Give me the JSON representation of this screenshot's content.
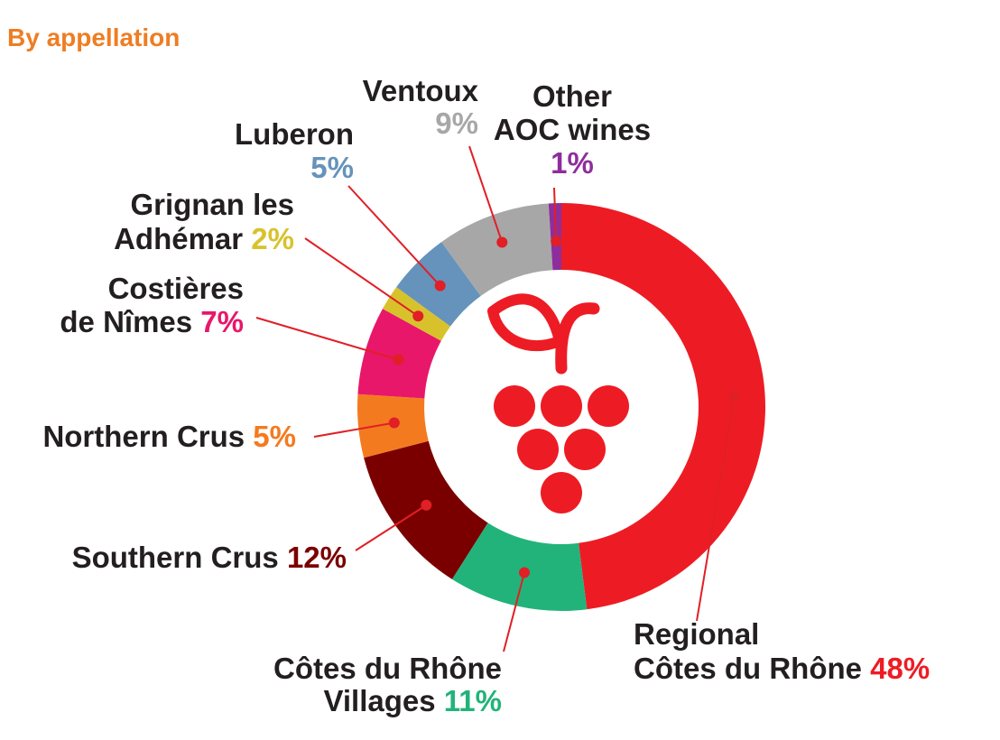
{
  "chart_data": {
    "type": "pie",
    "title": "By appellation",
    "unit": "%",
    "slices": [
      {
        "lines": [
          "Regional",
          "Côtes du Rhône"
        ],
        "value": 48,
        "value_label": "48%",
        "color": "#ed1c24"
      },
      {
        "lines": [
          "Côtes du Rhône",
          "Villages"
        ],
        "value": 11,
        "value_label": "11%",
        "color": "#22b37a"
      },
      {
        "lines": [
          "Southern Crus"
        ],
        "value": 12,
        "value_label": "12%",
        "color": "#7a0000"
      },
      {
        "lines": [
          "Northern Crus"
        ],
        "value": 5,
        "value_label": "5%",
        "color": "#f47a20"
      },
      {
        "lines": [
          "Costières",
          "de Nîmes"
        ],
        "value": 7,
        "value_label": "7%",
        "color": "#e8176a"
      },
      {
        "lines": [
          "Grignan les",
          "Adhémar"
        ],
        "value": 2,
        "value_label": "2%",
        "color": "#d8c22c"
      },
      {
        "lines": [
          "Luberon"
        ],
        "value": 5,
        "value_label": "5%",
        "color": "#6693bb"
      },
      {
        "lines": [
          "Ventoux"
        ],
        "value": 9,
        "value_label": "9%",
        "color": "#a7a7a7"
      },
      {
        "lines": [
          "Other",
          "AOC wines"
        ],
        "value": 1,
        "value_label": "1%",
        "color": "#8e2e9c"
      }
    ],
    "center_icon": "grape-icon",
    "icon_color": "#ed1c24",
    "leader_color": "#e01f26"
  }
}
